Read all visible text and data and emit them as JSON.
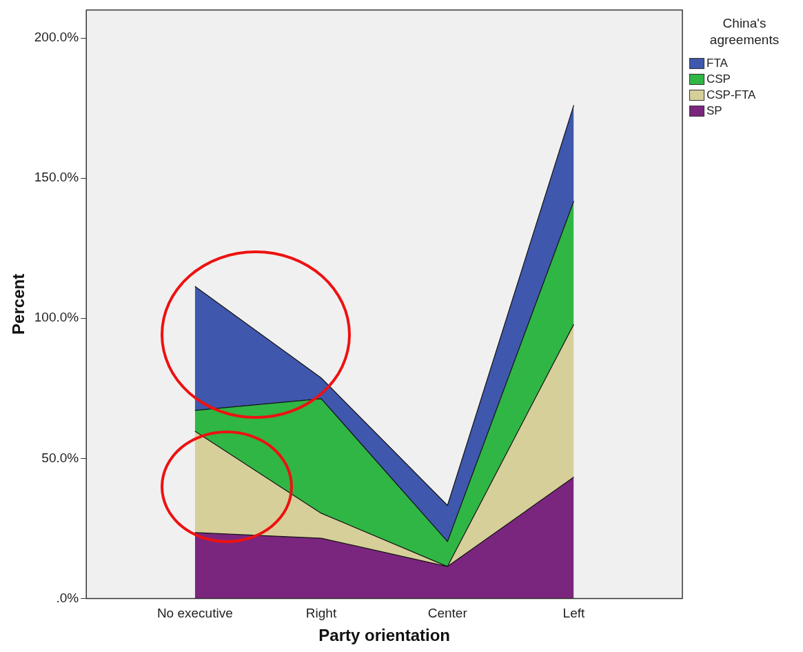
{
  "chart_data": {
    "type": "area",
    "stacked": true,
    "xlabel": "Party orientation",
    "ylabel": "Percent",
    "legend_title": "China's agreements",
    "legend": "top right",
    "grid": false,
    "categories": [
      "No executive",
      "Right",
      "Center",
      "Left"
    ],
    "ylim": [
      0,
      210
    ],
    "yticks": [
      {
        "value": 0,
        "label": ".0%"
      },
      {
        "value": 50,
        "label": "50.0%"
      },
      {
        "value": 100,
        "label": "100.0%"
      },
      {
        "value": 150,
        "label": "150.0%"
      },
      {
        "value": 200,
        "label": "200.0%"
      }
    ],
    "series": [
      {
        "name": "SP",
        "color": "#7b267e",
        "values": [
          23.5,
          21.5,
          11.4,
          43.3
        ]
      },
      {
        "name": "CSP-FTA",
        "color": "#d6cf99",
        "values": [
          36.2,
          8.9,
          0,
          54.5
        ]
      },
      {
        "name": "CSP",
        "color": "#30b645",
        "values": [
          7.4,
          40.9,
          8.9,
          44.0
        ]
      },
      {
        "name": "FTA",
        "color": "#3f57ac",
        "values": [
          44.3,
          7.4,
          12.9,
          34.2
        ]
      }
    ]
  }
}
